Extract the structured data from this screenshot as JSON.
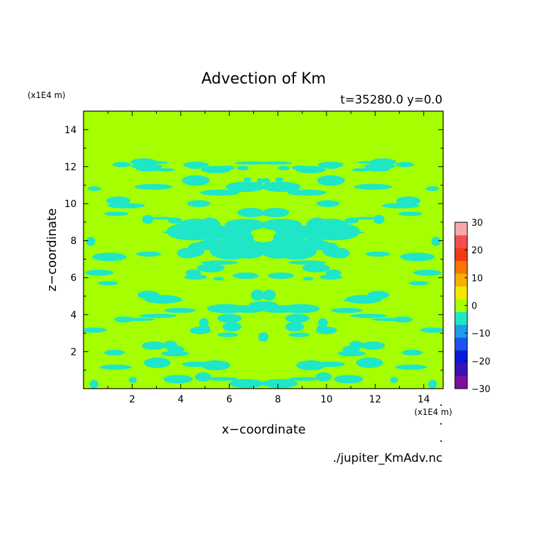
{
  "chart_data": {
    "type": "heatmap",
    "title": "Advection of Km",
    "subtitle": "t=35280.0 y=0.0",
    "xlabel": "x−coordinate",
    "ylabel": "z−coordinate",
    "x_unit_label": "(x1E4 m)",
    "y_unit_label": "(x1E4 m)",
    "source_file": "./jupiter_KmAdv.nc",
    "xlim": [
      0,
      14.8
    ],
    "ylim": [
      0,
      15
    ],
    "x_ticks": [
      2,
      4,
      6,
      8,
      10,
      12,
      14
    ],
    "y_ticks": [
      2,
      4,
      6,
      8,
      10,
      12,
      14
    ],
    "colorbar": {
      "min": -30,
      "max": 30,
      "tick_values": [
        30,
        20,
        10,
        0,
        -10,
        -20,
        -30
      ],
      "tick_labels": [
        "30",
        "20",
        "10",
        "0",
        "−10",
        "−20",
        "−30"
      ],
      "levels": [
        {
          "from": -30,
          "to": -25,
          "color": "#7a0f9f"
        },
        {
          "from": -25,
          "to": -20,
          "color": "#3a12b4"
        },
        {
          "from": -20,
          "to": -15,
          "color": "#0a18d8"
        },
        {
          "from": -15,
          "to": -10,
          "color": "#1c52ef"
        },
        {
          "from": -10,
          "to": -5,
          "color": "#1f9bf0"
        },
        {
          "from": -5,
          "to": 0,
          "color": "#1fe6c7"
        },
        {
          "from": 0,
          "to": 5,
          "color": "#a5ff00"
        },
        {
          "from": 5,
          "to": 10,
          "color": "#f2e800"
        },
        {
          "from": 10,
          "to": 15,
          "color": "#f7b000"
        },
        {
          "from": 15,
          "to": 20,
          "color": "#f77500"
        },
        {
          "from": 20,
          "to": 25,
          "color": "#f23a12"
        },
        {
          "from": 25,
          "to": 30,
          "color": "#f25050"
        },
        {
          "from": 30,
          "to": 35,
          "color": "#f7a8a8"
        }
      ]
    },
    "field_description": "mostly 0 to 5 with scattered patches of −5 to 0 below z≈12.5, mirror-symmetric about x≈7.4",
    "field_dominant_color": "#a5ff00",
    "field_patch_color": "#1fe6c7"
  }
}
